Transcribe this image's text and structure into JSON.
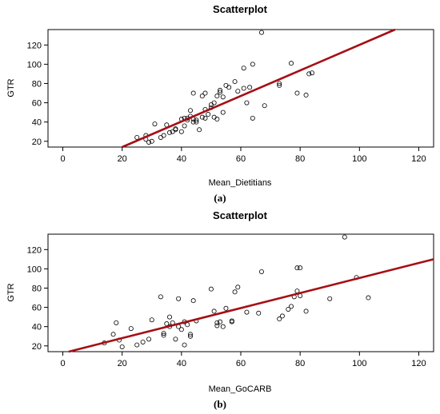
{
  "chart_data": [
    {
      "type": "scatter",
      "title": "Scatterplot",
      "xlabel": "Mean_Dietitians",
      "ylabel": "GTR",
      "sublabel": "(a)",
      "xlim": [
        -5,
        125
      ],
      "ylim": [
        14,
        136
      ],
      "xticks": [
        0,
        20,
        40,
        60,
        80,
        100,
        120
      ],
      "yticks": [
        20,
        40,
        60,
        80,
        100,
        120
      ],
      "grid": false,
      "fit_line": {
        "color": "#a50f15",
        "x": [
          20,
          112
        ],
        "y": [
          14,
          136
        ]
      },
      "points": [
        [
          25,
          24
        ],
        [
          28,
          22
        ],
        [
          28,
          26
        ],
        [
          29,
          19
        ],
        [
          30,
          20
        ],
        [
          31,
          38
        ],
        [
          33,
          24
        ],
        [
          34,
          26
        ],
        [
          35,
          37
        ],
        [
          36,
          29
        ],
        [
          37,
          30
        ],
        [
          38,
          33
        ],
        [
          38,
          32
        ],
        [
          40,
          30
        ],
        [
          40,
          43
        ],
        [
          41,
          36
        ],
        [
          41,
          44
        ],
        [
          42,
          42
        ],
        [
          42,
          44
        ],
        [
          43,
          52
        ],
        [
          43,
          46
        ],
        [
          44,
          40
        ],
        [
          44,
          70
        ],
        [
          44,
          43
        ],
        [
          45,
          40
        ],
        [
          45,
          42
        ],
        [
          46,
          32
        ],
        [
          47,
          45
        ],
        [
          47,
          67
        ],
        [
          48,
          44
        ],
        [
          48,
          70
        ],
        [
          48,
          53
        ],
        [
          49,
          48
        ],
        [
          50,
          55
        ],
        [
          50,
          58
        ],
        [
          51,
          45
        ],
        [
          51,
          60
        ],
        [
          52,
          43
        ],
        [
          52,
          67
        ],
        [
          53,
          71
        ],
        [
          53,
          73
        ],
        [
          54,
          50
        ],
        [
          54,
          66
        ],
        [
          55,
          78
        ],
        [
          56,
          76
        ],
        [
          58,
          82
        ],
        [
          59,
          72
        ],
        [
          61,
          75
        ],
        [
          61,
          96
        ],
        [
          62,
          60
        ],
        [
          63,
          76
        ],
        [
          64,
          44
        ],
        [
          64,
          100
        ],
        [
          67,
          133
        ],
        [
          68,
          57
        ],
        [
          73,
          80
        ],
        [
          73,
          78
        ],
        [
          77,
          101
        ],
        [
          79,
          70
        ],
        [
          82,
          68
        ],
        [
          83,
          90
        ],
        [
          84,
          91
        ]
      ]
    },
    {
      "type": "scatter",
      "title": "Scatterplot",
      "xlabel": "Mean_GoCARB",
      "ylabel": "GTR",
      "sublabel": "(b)",
      "xlim": [
        -5,
        125
      ],
      "ylim": [
        14,
        136
      ],
      "xticks": [
        0,
        20,
        40,
        60,
        80,
        100,
        120
      ],
      "yticks": [
        20,
        40,
        60,
        80,
        100,
        120
      ],
      "grid": false,
      "fit_line": {
        "color": "#a50f15",
        "x": [
          2,
          125
        ],
        "y": [
          14,
          110
        ]
      },
      "points": [
        [
          14,
          23
        ],
        [
          17,
          32
        ],
        [
          18,
          44
        ],
        [
          19,
          26
        ],
        [
          20,
          19
        ],
        [
          23,
          38
        ],
        [
          25,
          21
        ],
        [
          27,
          24
        ],
        [
          29,
          27
        ],
        [
          30,
          47
        ],
        [
          33,
          71
        ],
        [
          34,
          33
        ],
        [
          34,
          31
        ],
        [
          35,
          43
        ],
        [
          36,
          40
        ],
        [
          36,
          50
        ],
        [
          37,
          44
        ],
        [
          38,
          27
        ],
        [
          39,
          40
        ],
        [
          39,
          69
        ],
        [
          40,
          37
        ],
        [
          41,
          45
        ],
        [
          41,
          21
        ],
        [
          42,
          42
        ],
        [
          43,
          30
        ],
        [
          43,
          32
        ],
        [
          44,
          67
        ],
        [
          45,
          46
        ],
        [
          50,
          79
        ],
        [
          51,
          56
        ],
        [
          52,
          44
        ],
        [
          52,
          41
        ],
        [
          53,
          45
        ],
        [
          54,
          40
        ],
        [
          55,
          59
        ],
        [
          57,
          46
        ],
        [
          57,
          45
        ],
        [
          58,
          76
        ],
        [
          59,
          81
        ],
        [
          62,
          55
        ],
        [
          66,
          54
        ],
        [
          67,
          97
        ],
        [
          73,
          48
        ],
        [
          74,
          51
        ],
        [
          76,
          58
        ],
        [
          77,
          61
        ],
        [
          78,
          71
        ],
        [
          79,
          77
        ],
        [
          79,
          101
        ],
        [
          80,
          101
        ],
        [
          80,
          72
        ],
        [
          82,
          56
        ],
        [
          90,
          69
        ],
        [
          95,
          133
        ],
        [
          99,
          91
        ],
        [
          103,
          70
        ]
      ]
    }
  ]
}
